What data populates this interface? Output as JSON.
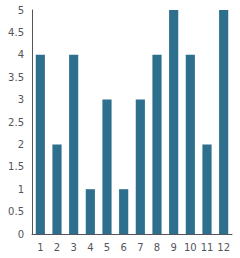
{
  "chart_data": {
    "type": "bar",
    "categories": [
      "1",
      "2",
      "3",
      "4",
      "5",
      "6",
      "7",
      "8",
      "9",
      "10",
      "11",
      "12"
    ],
    "values": [
      4,
      2,
      4,
      1,
      3,
      1,
      3,
      4,
      5,
      4,
      2,
      5
    ],
    "color": "#2e6f8e",
    "ylim": [
      0,
      5
    ],
    "yticks": [
      0,
      0.5,
      1,
      1.5,
      2,
      2.5,
      3,
      3.5,
      4,
      4.5,
      5
    ],
    "grid": false
  }
}
